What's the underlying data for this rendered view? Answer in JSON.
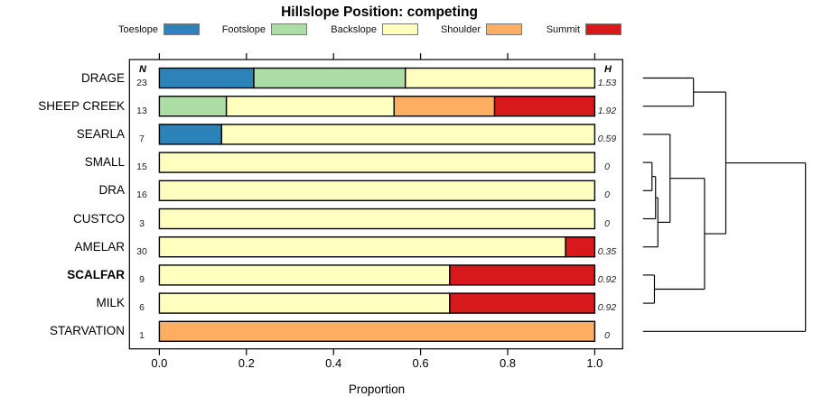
{
  "title": "Hillslope Position: competing",
  "columns": {
    "n_header": "N",
    "h_header": "H"
  },
  "x_axis": {
    "label": "Proportion",
    "ticks": [
      "0.0",
      "0.2",
      "0.4",
      "0.6",
      "0.8",
      "1.0"
    ],
    "tick_values": [
      0,
      0.2,
      0.4,
      0.6,
      0.8,
      1.0
    ]
  },
  "legend": [
    {
      "label": "Toeslope",
      "color": "#2b83ba"
    },
    {
      "label": "Footslope",
      "color": "#abdda4"
    },
    {
      "label": "Backslope",
      "color": "#ffffbf"
    },
    {
      "label": "Shoulder",
      "color": "#fdae61"
    },
    {
      "label": "Summit",
      "color": "#d7191c"
    }
  ],
  "chart_data": {
    "type": "bar",
    "stacked": true,
    "orientation": "horizontal",
    "title": "Hillslope Position: competing",
    "xlabel": "Proportion",
    "xlim": [
      0,
      1
    ],
    "grid": false,
    "legend_position": "top",
    "categories": [
      "Toeslope",
      "Footslope",
      "Backslope",
      "Shoulder",
      "Summit"
    ],
    "colors": {
      "Toeslope": "#2b83ba",
      "Footslope": "#abdda4",
      "Backslope": "#ffffbf",
      "Shoulder": "#fdae61",
      "Summit": "#d7191c"
    },
    "rows": [
      {
        "label": "DRAGE",
        "n": 23,
        "h": "1.53",
        "bold": false,
        "segments": [
          {
            "category": "Toeslope",
            "value": 0.217
          },
          {
            "category": "Footslope",
            "value": 0.348
          },
          {
            "category": "Backslope",
            "value": 0.435
          }
        ]
      },
      {
        "label": "SHEEP CREEK",
        "n": 13,
        "h": "1.92",
        "bold": false,
        "segments": [
          {
            "category": "Footslope",
            "value": 0.154
          },
          {
            "category": "Backslope",
            "value": 0.385
          },
          {
            "category": "Shoulder",
            "value": 0.231
          },
          {
            "category": "Summit",
            "value": 0.23
          }
        ]
      },
      {
        "label": "SEARLA",
        "n": 7,
        "h": "0.59",
        "bold": false,
        "segments": [
          {
            "category": "Toeslope",
            "value": 0.143
          },
          {
            "category": "Backslope",
            "value": 0.857
          }
        ]
      },
      {
        "label": "SMALL",
        "n": 15,
        "h": "0",
        "bold": false,
        "segments": [
          {
            "category": "Backslope",
            "value": 1.0
          }
        ]
      },
      {
        "label": "DRA",
        "n": 16,
        "h": "0",
        "bold": false,
        "segments": [
          {
            "category": "Backslope",
            "value": 1.0
          }
        ]
      },
      {
        "label": "CUSTCO",
        "n": 3,
        "h": "0",
        "bold": false,
        "segments": [
          {
            "category": "Backslope",
            "value": 1.0
          }
        ]
      },
      {
        "label": "AMELAR",
        "n": 30,
        "h": "0.35",
        "bold": false,
        "segments": [
          {
            "category": "Backslope",
            "value": 0.933
          },
          {
            "category": "Summit",
            "value": 0.067
          }
        ]
      },
      {
        "label": "SCALFAR",
        "n": 9,
        "h": "0.92",
        "bold": true,
        "segments": [
          {
            "category": "Backslope",
            "value": 0.667
          },
          {
            "category": "Summit",
            "value": 0.333
          }
        ]
      },
      {
        "label": "MILK",
        "n": 6,
        "h": "0.92",
        "bold": false,
        "segments": [
          {
            "category": "Backslope",
            "value": 0.667
          },
          {
            "category": "Summit",
            "value": 0.333
          }
        ]
      },
      {
        "label": "STARVATION",
        "n": 1,
        "h": "0",
        "bold": false,
        "segments": [
          {
            "category": "Shoulder",
            "value": 1.0
          }
        ]
      }
    ],
    "dendrogram": {
      "leaves": [
        "DRAGE",
        "SHEEP CREEK",
        "SEARLA",
        "SMALL",
        "DRA",
        "CUSTCO",
        "AMELAR",
        "SCALFAR",
        "MILK",
        "STARVATION"
      ],
      "merges": [
        {
          "id": "m1",
          "children": [
            "SMALL",
            "DRA"
          ],
          "height": 0.056
        },
        {
          "id": "m2",
          "children": [
            "SCALFAR",
            "MILK"
          ],
          "height": 0.071
        },
        {
          "id": "m3",
          "children": [
            "m1",
            "CUSTCO"
          ],
          "height": 0.078
        },
        {
          "id": "m4",
          "children": [
            "m3",
            "AMELAR"
          ],
          "height": 0.092
        },
        {
          "id": "m5",
          "children": [
            "SEARLA",
            "m4"
          ],
          "height": 0.167
        },
        {
          "id": "m6",
          "children": [
            "DRAGE",
            "SHEEP CREEK"
          ],
          "height": 0.311
        },
        {
          "id": "m7",
          "children": [
            "m5",
            "m2"
          ],
          "height": 0.379
        },
        {
          "id": "m8",
          "children": [
            "m6",
            "m7"
          ],
          "height": 0.51
        },
        {
          "id": "m9",
          "children": [
            "m8",
            "STARVATION"
          ],
          "height": 1.0
        }
      ]
    }
  }
}
